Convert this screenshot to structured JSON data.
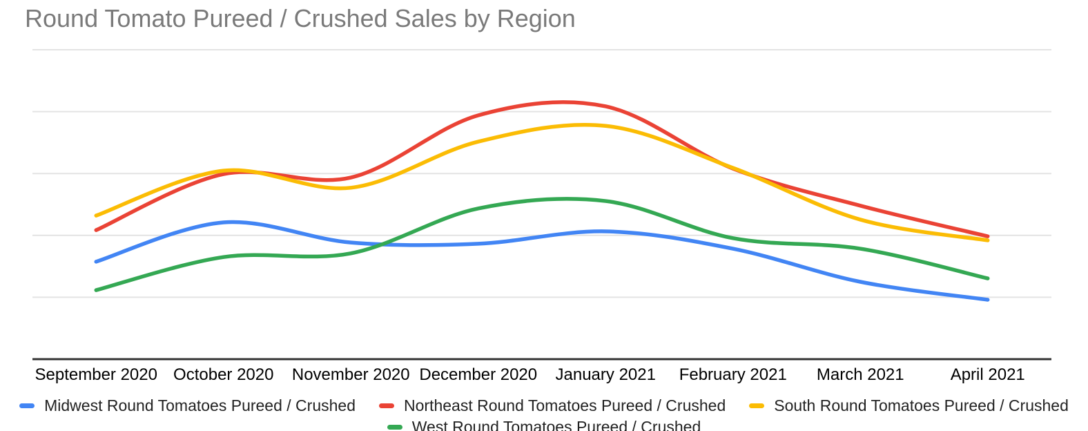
{
  "page": {
    "background": "#ffffff"
  },
  "title": {
    "text": "Round Tomato Pureed / Crushed Sales by Region",
    "color": "#7a7a7a"
  },
  "chart_data": {
    "type": "line",
    "smooth": true,
    "title": "Round Tomato Pureed / Crushed Sales by Region",
    "xlabel": "",
    "ylabel": "",
    "categories": [
      "September 2020",
      "October 2020",
      "November 2020",
      "December 2020",
      "January 2021",
      "February 2021",
      "March 2021",
      "April 2021"
    ],
    "series": [
      {
        "name": "Midwest Round Tomatoes Pureed / Crushed",
        "color": "#4285F4",
        "values": [
          1575,
          2210,
          1885,
          1865,
          2065,
          1785,
          1250,
          960
        ]
      },
      {
        "name": "Northeast Round Tomatoes Pureed / Crushed",
        "color": "#EA4335",
        "values": [
          2085,
          2990,
          2935,
          3940,
          4085,
          3080,
          2480,
          1985
        ]
      },
      {
        "name": "South Round Tomatoes Pureed / Crushed",
        "color": "#FBBC04",
        "values": [
          2320,
          3045,
          2770,
          3515,
          3770,
          3090,
          2255,
          1920
        ]
      },
      {
        "name": "West Round Tomatoes Pureed / Crushed",
        "color": "#34A853",
        "values": [
          1115,
          1650,
          1710,
          2435,
          2555,
          1955,
          1785,
          1305
        ]
      }
    ],
    "ylim": [
      0,
      5000
    ],
    "y_gridline_step": 1000,
    "y_axis_labels_visible": false,
    "values_note": "Y-axis is unlabeled in the chart; values estimated in arbitrary units from gridline spacing (one gridline = 1000 units, x-axis baseline = 0).",
    "grid": true,
    "legend_position": "bottom",
    "axis_color": "#333333",
    "gridline_color": "#e3e3e3",
    "x_label_color": "#000000"
  }
}
